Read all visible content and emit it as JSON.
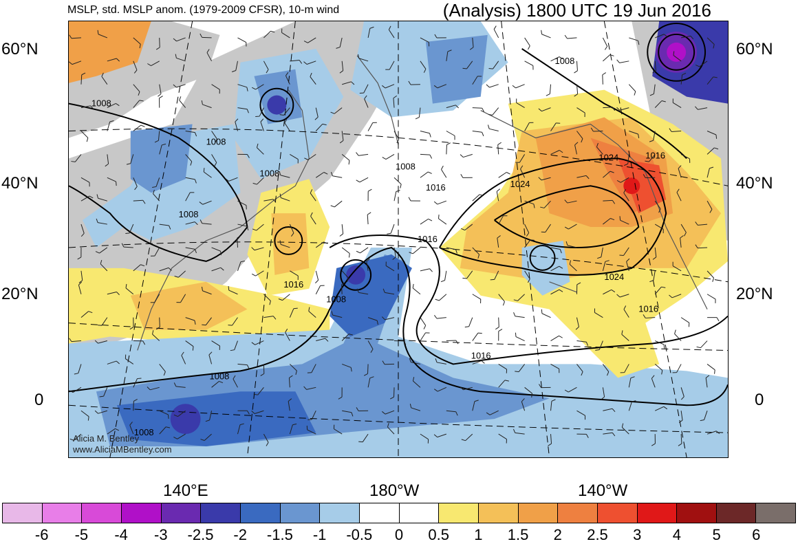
{
  "header": {
    "left_title": "MSLP, std. MSLP anom. (1979-2009 CFSR), 10-m wind",
    "right_title": "(Analysis) 1800 UTC 19 Jun 2016"
  },
  "axes": {
    "lat_labels": [
      "60°N",
      "40°N",
      "20°N",
      "0"
    ],
    "lon_labels": [
      "140°E",
      "180°W",
      "140°W"
    ]
  },
  "credit": {
    "name": "Alicia M. Bentley",
    "url": "www.AliciaMBentley.com"
  },
  "contour_labels": [
    "1008",
    "1008",
    "1008",
    "1008",
    "1008",
    "1008",
    "1008",
    "1008",
    "1008",
    "1016",
    "1016",
    "1016",
    "1016",
    "1016",
    "1016",
    "1024",
    "1024",
    "1024"
  ],
  "colorbar": {
    "colors": [
      "#e8b8e8",
      "#e87ee8",
      "#d84ad8",
      "#b010c8",
      "#6a2ab0",
      "#3a3aaa",
      "#3a6ac0",
      "#6a96d0",
      "#a6cce8",
      "#ffffff",
      "#ffffff",
      "#f8e870",
      "#f4c058",
      "#f0a048",
      "#ee8040",
      "#ee5030",
      "#e01818",
      "#a01010",
      "#6c2828",
      "#7a6e6a"
    ],
    "labels": [
      "-6",
      "-5",
      "-4",
      "-3",
      "-2.5",
      "-2",
      "-1.5",
      "-1",
      "-0.5",
      "0",
      "0.5",
      "1",
      "1.5",
      "2",
      "2.5",
      "3",
      "4",
      "5",
      "6"
    ]
  },
  "colors": {
    "land": "#c8c8c8",
    "frame": "#000000"
  }
}
